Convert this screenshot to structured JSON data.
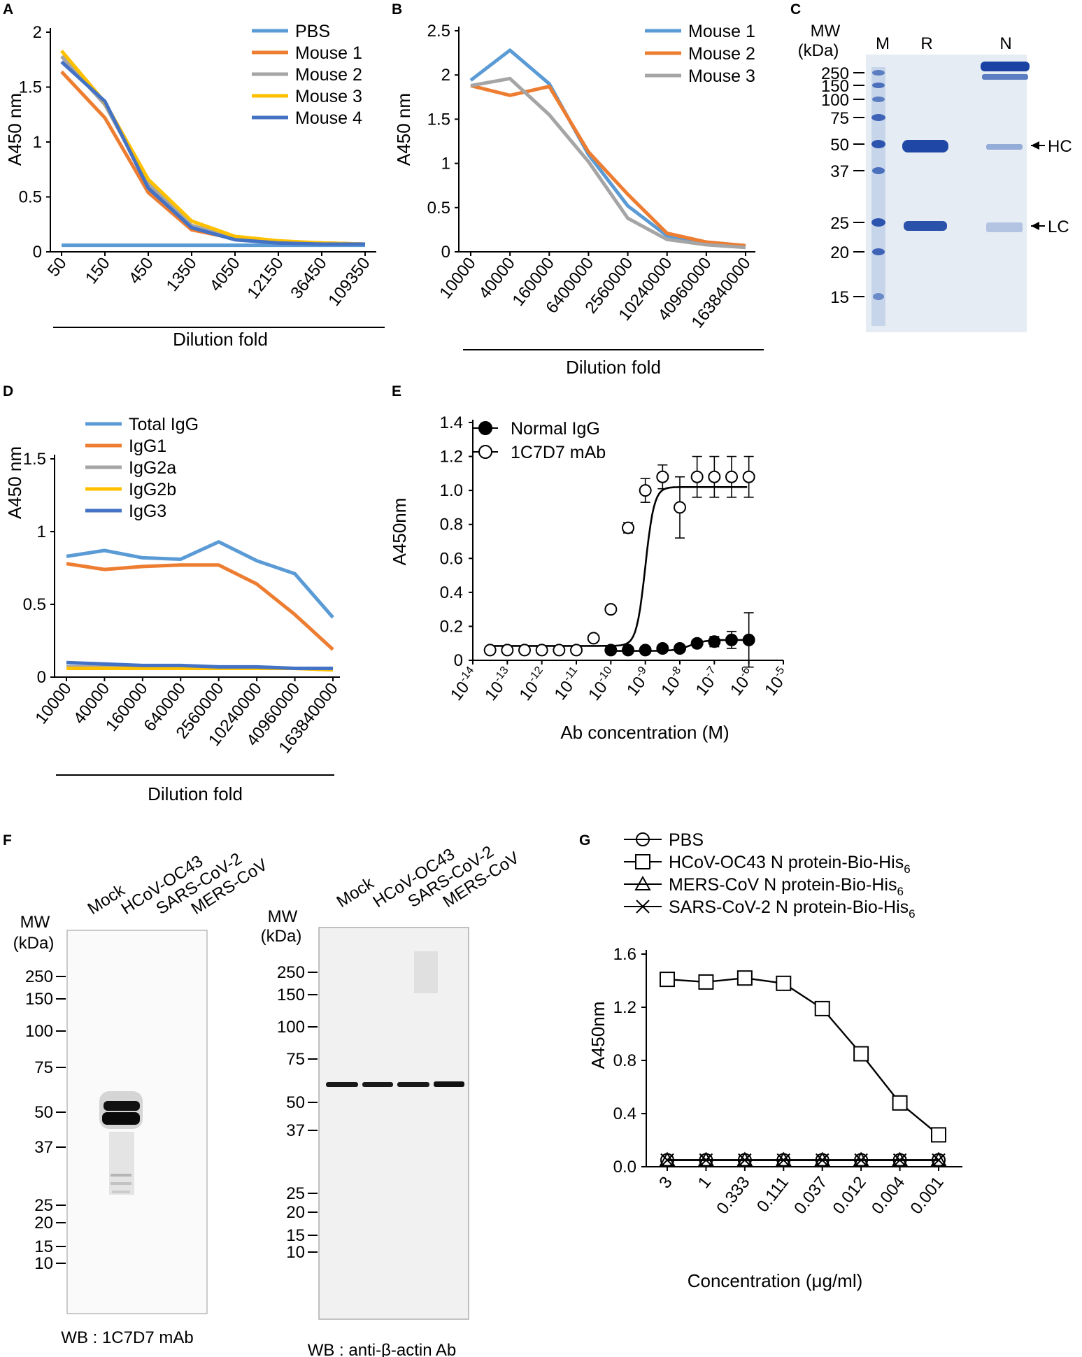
{
  "panels": {
    "A": {
      "letter": "A",
      "chart_data": {
        "type": "line",
        "title": "",
        "xlabel": "Dilution fold",
        "ylabel": "A450 nm",
        "categories": [
          "50",
          "150",
          "450",
          "1350",
          "4050",
          "12150",
          "36450",
          "109350"
        ],
        "ylim": [
          0,
          2
        ],
        "yticks": [
          "0",
          "0.5",
          "1",
          "1.5",
          "2"
        ],
        "series": [
          {
            "name": "PBS",
            "color": "#5B9BD5",
            "values": [
              0.06,
              0.06,
              0.06,
              0.06,
              0.06,
              0.06,
              0.06,
              0.06
            ]
          },
          {
            "name": "Mouse 1",
            "color": "#ED7D31",
            "values": [
              1.64,
              1.22,
              0.54,
              0.2,
              0.12,
              0.09,
              0.08,
              0.07
            ]
          },
          {
            "name": "Mouse 2",
            "color": "#A5A5A5",
            "values": [
              1.78,
              1.34,
              0.62,
              0.24,
              0.13,
              0.09,
              0.08,
              0.07
            ]
          },
          {
            "name": "Mouse 3",
            "color": "#FFC000",
            "values": [
              1.83,
              1.36,
              0.66,
              0.28,
              0.14,
              0.1,
              0.08,
              0.07
            ]
          },
          {
            "name": "Mouse 4",
            "color": "#4472C4",
            "values": [
              1.73,
              1.37,
              0.58,
              0.22,
              0.11,
              0.08,
              0.07,
              0.07
            ]
          }
        ]
      }
    },
    "B": {
      "letter": "B",
      "chart_data": {
        "type": "line",
        "title": "",
        "xlabel": "Dilution fold",
        "ylabel": "A450 nm",
        "categories": [
          "10000",
          "40000",
          "160000",
          "6400000",
          "2560000",
          "10240000",
          "40960000",
          "163840000"
        ],
        "ylim": [
          0,
          2.5
        ],
        "yticks": [
          "0",
          "0.5",
          "1",
          "1.5",
          "2",
          "2.5"
        ],
        "series": [
          {
            "name": "Mouse 1",
            "color": "#5B9BD5",
            "values": [
              1.94,
              2.28,
              1.9,
              1.1,
              0.52,
              0.18,
              0.11,
              0.07
            ]
          },
          {
            "name": "Mouse 2",
            "color": "#ED7D31",
            "values": [
              1.88,
              1.77,
              1.87,
              1.13,
              0.65,
              0.21,
              0.11,
              0.07
            ]
          },
          {
            "name": "Mouse 3",
            "color": "#A5A5A5",
            "values": [
              1.88,
              1.96,
              1.55,
              1.02,
              0.38,
              0.14,
              0.08,
              0.05
            ]
          }
        ]
      }
    },
    "C": {
      "letter": "C",
      "mw_title": "MW",
      "mw_unit": "(kDa)",
      "lanes": [
        "M",
        "R",
        "N"
      ],
      "markers": [
        "250",
        "150",
        "100",
        "75",
        "50",
        "37",
        "25",
        "20",
        "15"
      ],
      "arrows": [
        "HC",
        "LC"
      ]
    },
    "D": {
      "letter": "D",
      "chart_data": {
        "type": "line",
        "title": "",
        "xlabel": "Dilution fold",
        "ylabel": "A450 nm",
        "categories": [
          "10000",
          "40000",
          "160000",
          "640000",
          "2560000",
          "10240000",
          "40960000",
          "163840000"
        ],
        "ylim": [
          0,
          1.5
        ],
        "yticks": [
          "0",
          "0.5",
          "1",
          "1.5"
        ],
        "series": [
          {
            "name": "Total IgG",
            "color": "#5B9BD5",
            "values": [
              0.83,
              0.87,
              0.82,
              0.81,
              0.93,
              0.8,
              0.71,
              0.41
            ]
          },
          {
            "name": "IgG1",
            "color": "#ED7D31",
            "values": [
              0.78,
              0.74,
              0.76,
              0.77,
              0.77,
              0.64,
              0.43,
              0.19
            ]
          },
          {
            "name": "IgG2a",
            "color": "#A5A5A5",
            "values": [
              0.07,
              0.07,
              0.07,
              0.07,
              0.06,
              0.06,
              0.06,
              0.05
            ]
          },
          {
            "name": "IgG2b",
            "color": "#FFC000",
            "values": [
              0.06,
              0.06,
              0.06,
              0.06,
              0.06,
              0.06,
              0.06,
              0.05
            ]
          },
          {
            "name": "IgG3",
            "color": "#4472C4",
            "values": [
              0.1,
              0.09,
              0.08,
              0.08,
              0.07,
              0.07,
              0.06,
              0.06
            ]
          }
        ]
      }
    },
    "E": {
      "letter": "E",
      "chart_data": {
        "type": "scatter",
        "title": "",
        "xlabel": "Ab concentration (M)",
        "ylabel": "A450nm",
        "x_log10_range": [
          -14,
          -5
        ],
        "x_tick_exponents": [
          "-14",
          "-13",
          "-12",
          "-11",
          "-10",
          "-9",
          "-8",
          "-7",
          "-6",
          "-5"
        ],
        "ylim": [
          0,
          1.4
        ],
        "yticks": [
          "0",
          "0.2",
          "0.4",
          "0.6",
          "0.8",
          "1.0",
          "1.2",
          "1.4"
        ],
        "fit_ec50_log10": -9.0,
        "series": [
          {
            "name": "Normal IgG",
            "marker": "filled-circle",
            "x_log10": [
              -10,
              -9.5,
              -9,
              -8.5,
              -8,
              -7.5,
              -7,
              -6.5,
              -6
            ],
            "y": [
              0.06,
              0.06,
              0.06,
              0.07,
              0.07,
              0.1,
              0.11,
              0.12,
              0.12
            ],
            "err": [
              0.01,
              0.01,
              0.01,
              0.01,
              0.01,
              0.02,
              0.03,
              0.05,
              0.16
            ]
          },
          {
            "name": "1C7D7 mAb",
            "marker": "open-circle",
            "x_log10": [
              -13.5,
              -13,
              -12.5,
              -12,
              -11.5,
              -11,
              -10.5,
              -10,
              -9.5,
              -9,
              -8.5,
              -8,
              -7.5,
              -7,
              -6.5,
              -6
            ],
            "y": [
              0.06,
              0.06,
              0.06,
              0.06,
              0.06,
              0.06,
              0.13,
              0.3,
              0.78,
              1.0,
              1.08,
              0.9,
              1.08,
              1.08,
              1.08,
              1.08
            ],
            "err": [
              0,
              0,
              0,
              0,
              0,
              0,
              0.01,
              0.02,
              0.03,
              0.07,
              0.07,
              0.18,
              0.12,
              0.12,
              0.12,
              0.12
            ]
          }
        ]
      }
    },
    "F": {
      "letter": "F",
      "lanes": [
        "Mock",
        "HCoV-OC43",
        "SARS-CoV-2",
        "MERS-CoV"
      ],
      "mw_title": "MW",
      "mw_unit": "(kDa)",
      "markers": [
        "250",
        "150",
        "100",
        "75",
        "50",
        "37",
        "25",
        "20",
        "15",
        "10"
      ],
      "blot1_caption": "WB : 1C7D7 mAb",
      "blot2_caption_prefix": "WB : anti-",
      "blot2_caption_greek": "β",
      "blot2_caption_suffix": "-actin Ab"
    },
    "G": {
      "letter": "G",
      "chart_data": {
        "type": "line",
        "title": "",
        "xlabel_prefix": "Concentration (",
        "xlabel_greek": "μ",
        "xlabel_suffix": "g/ml)",
        "ylabel": "A450nm",
        "categories": [
          "3",
          "1",
          "0.333",
          "0.111",
          "0.037",
          "0.012",
          "0.004",
          "0.001"
        ],
        "ylim": [
          0,
          1.6
        ],
        "yticks": [
          "0.0",
          "0.4",
          "0.8",
          "1.2",
          "1.6"
        ],
        "series": [
          {
            "name": "PBS",
            "marker": "circle",
            "values": [
              0.05,
              0.05,
              0.05,
              0.05,
              0.05,
              0.05,
              0.05,
              0.05
            ]
          },
          {
            "name": "HCoV-OC43 N protein-Bio-His",
            "sub": "6",
            "marker": "square",
            "values": [
              1.41,
              1.39,
              1.42,
              1.38,
              1.19,
              0.85,
              0.48,
              0.24
            ],
            "err": [
              0.03,
              0.03,
              0.02,
              0.04,
              0.04,
              0.05,
              0.05,
              0.05
            ]
          },
          {
            "name": "MERS-CoV N protein-Bio-His",
            "sub": "6",
            "marker": "triangle",
            "values": [
              0.05,
              0.05,
              0.05,
              0.05,
              0.05,
              0.05,
              0.05,
              0.05
            ]
          },
          {
            "name": "SARS-CoV-2 N protein-Bio-His",
            "sub": "6",
            "marker": "x",
            "values": [
              0.05,
              0.05,
              0.05,
              0.05,
              0.05,
              0.05,
              0.05,
              0.05
            ]
          }
        ]
      }
    }
  }
}
